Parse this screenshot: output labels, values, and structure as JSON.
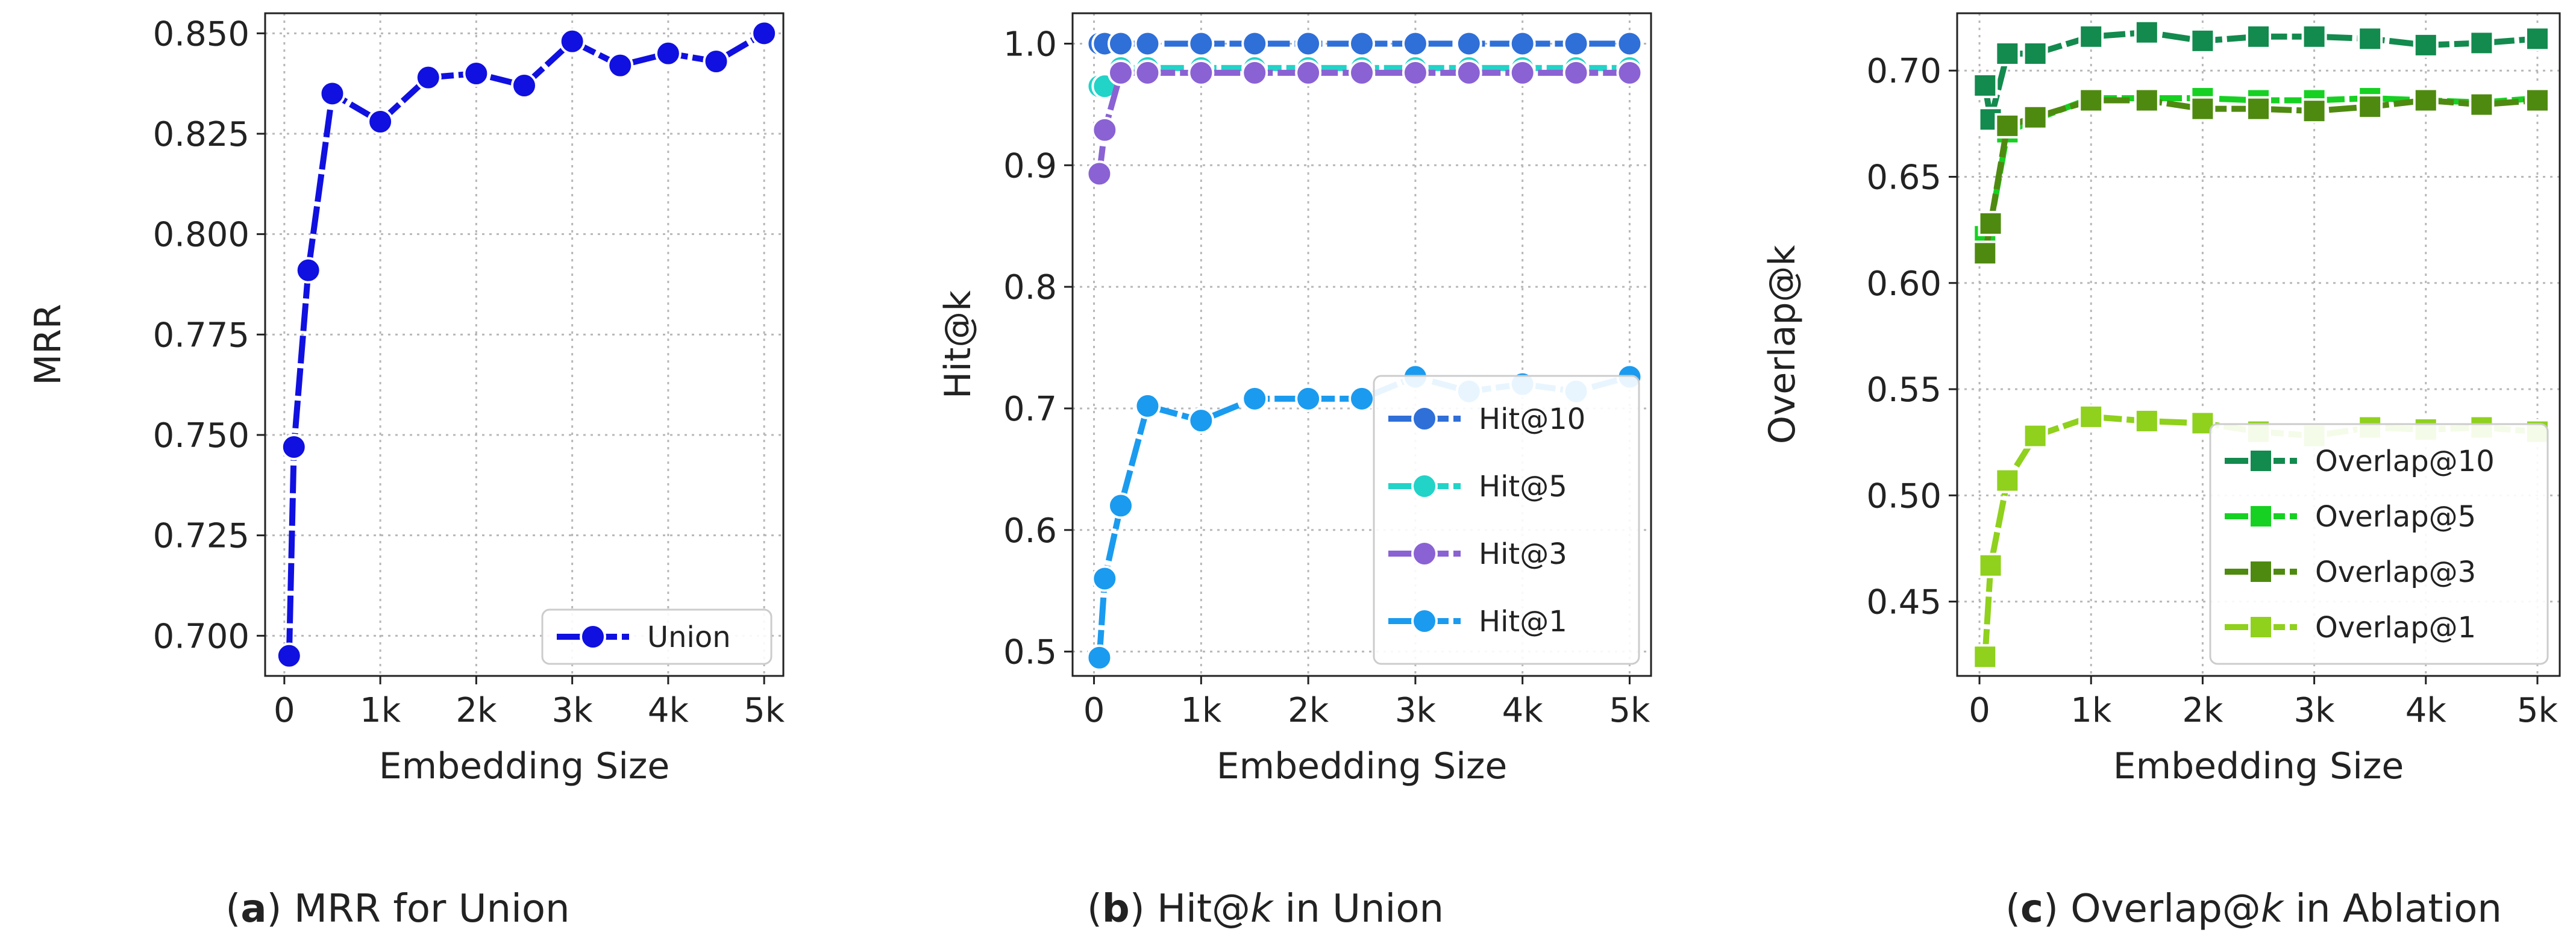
{
  "chart_data": [
    {
      "type": "line",
      "xlabel": "Embedding Size",
      "ylabel": "MRR",
      "xticks": [
        0,
        1000,
        2000,
        3000,
        4000,
        5000
      ],
      "xtick_labels": [
        "0",
        "1k",
        "2k",
        "3k",
        "4k",
        "5k"
      ],
      "yticks": [
        0.7,
        0.725,
        0.75,
        0.775,
        0.8,
        0.825,
        0.85
      ],
      "ytick_labels": [
        "0.700",
        "0.725",
        "0.750",
        "0.775",
        "0.800",
        "0.825",
        "0.850"
      ],
      "xlim": [
        -200,
        5200
      ],
      "ylim": [
        0.69,
        0.855
      ],
      "grid": true,
      "legend_position": "bottom-right",
      "x": [
        50,
        100,
        250,
        500,
        1000,
        1500,
        2000,
        2500,
        3000,
        3500,
        4000,
        4500,
        5000
      ],
      "series": [
        {
          "name": "Union",
          "color": "#1010e0",
          "marker": "circle",
          "values": [
            0.695,
            0.747,
            0.791,
            0.835,
            0.828,
            0.839,
            0.84,
            0.837,
            0.848,
            0.842,
            0.845,
            0.843,
            0.85
          ]
        }
      ],
      "caption": {
        "label": "a",
        "parts": [
          {
            "text": "MRR",
            "style": "sans"
          },
          {
            "text": " for ",
            "style": "serif"
          },
          {
            "text": "Union",
            "style": "sans"
          }
        ]
      }
    },
    {
      "type": "line",
      "xlabel": "Embedding Size",
      "ylabel": "Hit@k",
      "xticks": [
        0,
        1000,
        2000,
        3000,
        4000,
        5000
      ],
      "xtick_labels": [
        "0",
        "1k",
        "2k",
        "3k",
        "4k",
        "5k"
      ],
      "yticks": [
        0.5,
        0.6,
        0.7,
        0.8,
        0.9,
        1.0
      ],
      "ytick_labels": [
        "0.5",
        "0.6",
        "0.7",
        "0.8",
        "0.9",
        "1.0"
      ],
      "xlim": [
        -200,
        5200
      ],
      "ylim": [
        0.48,
        1.025
      ],
      "grid": true,
      "legend_position": "bottom-right",
      "x": [
        50,
        100,
        250,
        500,
        1000,
        1500,
        2000,
        2500,
        3000,
        3500,
        4000,
        4500,
        5000
      ],
      "series": [
        {
          "name": "Hit@10",
          "color": "#2f6fd8",
          "marker": "circle",
          "values": [
            1.0,
            1.0,
            1.0,
            1.0,
            1.0,
            1.0,
            1.0,
            1.0,
            1.0,
            1.0,
            1.0,
            1.0,
            1.0
          ]
        },
        {
          "name": "Hit@5",
          "color": "#22d3c8",
          "marker": "circle",
          "values": [
            0.965,
            0.965,
            0.98,
            0.98,
            0.98,
            0.98,
            0.98,
            0.98,
            0.98,
            0.98,
            0.98,
            0.98,
            0.98
          ]
        },
        {
          "name": "Hit@3",
          "color": "#8a62d4",
          "marker": "circle",
          "values": [
            0.893,
            0.929,
            0.976,
            0.976,
            0.976,
            0.976,
            0.976,
            0.976,
            0.976,
            0.976,
            0.976,
            0.976,
            0.976
          ]
        },
        {
          "name": "Hit@1",
          "color": "#1a9bef",
          "marker": "circle",
          "values": [
            0.495,
            0.56,
            0.62,
            0.702,
            0.69,
            0.708,
            0.708,
            0.708,
            0.726,
            0.714,
            0.72,
            0.714,
            0.726
          ]
        }
      ],
      "caption": {
        "label": "b",
        "parts": [
          {
            "text": "Hit@",
            "style": "sans"
          },
          {
            "text": "k",
            "style": "sans-italic"
          },
          {
            "text": " in ",
            "style": "serif"
          },
          {
            "text": "Union",
            "style": "sans"
          }
        ]
      }
    },
    {
      "type": "line",
      "xlabel": "Embedding Size",
      "ylabel": "Overlap@k",
      "xticks": [
        0,
        1000,
        2000,
        3000,
        4000,
        5000
      ],
      "xtick_labels": [
        "0",
        "1k",
        "2k",
        "3k",
        "4k",
        "5k"
      ],
      "yticks": [
        0.45,
        0.5,
        0.55,
        0.6,
        0.65,
        0.7
      ],
      "ytick_labels": [
        "0.45",
        "0.50",
        "0.55",
        "0.60",
        "0.65",
        "0.70"
      ],
      "xlim": [
        -200,
        5200
      ],
      "ylim": [
        0.415,
        0.727
      ],
      "grid": true,
      "legend_position": "bottom-right",
      "x": [
        50,
        100,
        250,
        500,
        1000,
        1500,
        2000,
        2500,
        3000,
        3500,
        4000,
        4500,
        5000
      ],
      "series": [
        {
          "name": "Overlap@10",
          "color": "#138a4e",
          "marker": "square",
          "values": [
            0.693,
            0.677,
            0.708,
            0.708,
            0.716,
            0.718,
            0.714,
            0.716,
            0.716,
            0.715,
            0.712,
            0.713,
            0.715
          ]
        },
        {
          "name": "Overlap@5",
          "color": "#16d122",
          "marker": "square",
          "values": [
            0.622,
            0.628,
            0.671,
            0.677,
            0.687,
            0.687,
            0.687,
            0.686,
            0.686,
            0.687,
            0.686,
            0.685,
            0.687
          ]
        },
        {
          "name": "Overlap@3",
          "color": "#4f8a10",
          "marker": "square",
          "values": [
            0.614,
            0.628,
            0.674,
            0.678,
            0.686,
            0.686,
            0.682,
            0.682,
            0.681,
            0.683,
            0.686,
            0.684,
            0.686
          ]
        },
        {
          "name": "Overlap@1",
          "color": "#8fd11c",
          "marker": "square",
          "values": [
            0.424,
            0.467,
            0.507,
            0.528,
            0.537,
            0.535,
            0.534,
            0.53,
            0.528,
            0.532,
            0.531,
            0.532,
            0.53
          ]
        }
      ],
      "caption": {
        "label": "c",
        "parts": [
          {
            "text": "Overlap@",
            "style": "sans"
          },
          {
            "text": "k",
            "style": "sans-italic"
          },
          {
            "text": " in ",
            "style": "serif"
          },
          {
            "text": "Ablation",
            "style": "sans"
          }
        ]
      }
    }
  ]
}
